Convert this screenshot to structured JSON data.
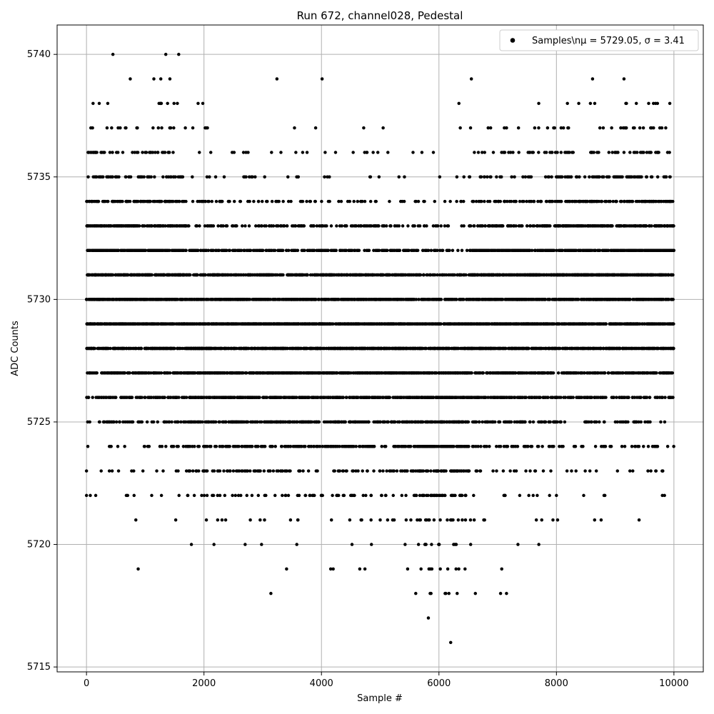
{
  "chart_data": {
    "type": "scatter",
    "title": "Run 672, channel028, Pedestal",
    "xlabel": "Sample #",
    "ylabel": "ADC Counts",
    "xlim": [
      -500,
      10500
    ],
    "ylim": [
      5714.8,
      5741.2
    ],
    "xticks": [
      0,
      2000,
      4000,
      6000,
      8000,
      10000
    ],
    "xtick_labels": [
      "0",
      "2000",
      "4000",
      "6000",
      "8000",
      "10000"
    ],
    "yticks": [
      5715,
      5720,
      5725,
      5730,
      5735,
      5740
    ],
    "ytick_labels": [
      "5715",
      "5720",
      "5725",
      "5730",
      "5735",
      "5740"
    ],
    "grid": true,
    "legend_position": "top-right",
    "series": [
      {
        "name": "Samples\\nμ = 5729.05, σ = 3.41",
        "legend_text": "Samples\\nμ = 5729.05, σ = 3.41",
        "color": "#000000",
        "marker": "dot",
        "sample_count": 10000,
        "mean": 5729.05,
        "sigma": 3.41,
        "x": [
          0,
          450,
          1350,
          1570,
          1420,
          1260,
          1380,
          1490,
          1810,
          1900,
          1980,
          2020,
          2480,
          3150,
          3310,
          3680,
          4240,
          4770,
          4880,
          4960,
          5050,
          5710,
          6880,
          7150,
          7360,
          7540,
          7630,
          7800,
          8080,
          8380,
          8740,
          9150,
          9190,
          9360,
          9420,
          9480,
          9570,
          9620,
          9760,
          9930,
          880,
          2170,
          2980,
          3580,
          4200,
          4740,
          5780,
          5820,
          5850,
          5880,
          6000,
          6150,
          6170,
          6200,
          6250,
          6540,
          6620,
          7700,
          1110,
          840,
          3600,
          4170,
          5790,
          6210,
          6600,
          7750,
          8020,
          8650,
          1410,
          1560,
          5590,
          7530,
          8810,
          9690,
          0,
          250,
          420,
          650,
          1250,
          1650,
          2270,
          2730,
          3210,
          3620,
          4550,
          5020,
          5350,
          5950,
          6700,
          7120,
          7480,
          8180,
          8570,
          9300,
          9810
        ],
        "y": [
          5722,
          5740,
          5740,
          5740,
          5739,
          5738,
          5738,
          5738,
          5737,
          5738,
          5738,
          5737,
          5736,
          5736,
          5736,
          5736,
          5736,
          5736,
          5736,
          5736,
          5737,
          5736,
          5737,
          5737,
          5736,
          5736,
          5737,
          5736,
          5737,
          5738,
          5737,
          5739,
          5737,
          5738,
          5737,
          5737,
          5738,
          5737,
          5737,
          5738,
          5719,
          5720,
          5720,
          5720,
          5719,
          5719,
          5720,
          5717,
          5718,
          5719,
          5720,
          5719,
          5718,
          5716,
          5720,
          5720,
          5718,
          5720,
          5722,
          5721,
          5721,
          5721,
          5721,
          5721,
          5721,
          5721,
          5721,
          5721,
          5725,
          5723,
          5722,
          5722,
          5722,
          5723,
          5723,
          5723,
          5724,
          5724,
          5724,
          5724,
          5723,
          5722,
          5722,
          5722,
          5722,
          5722,
          5723,
          5722,
          5723,
          5722,
          5723,
          5723,
          5723,
          5723,
          5723
        ]
      }
    ]
  }
}
